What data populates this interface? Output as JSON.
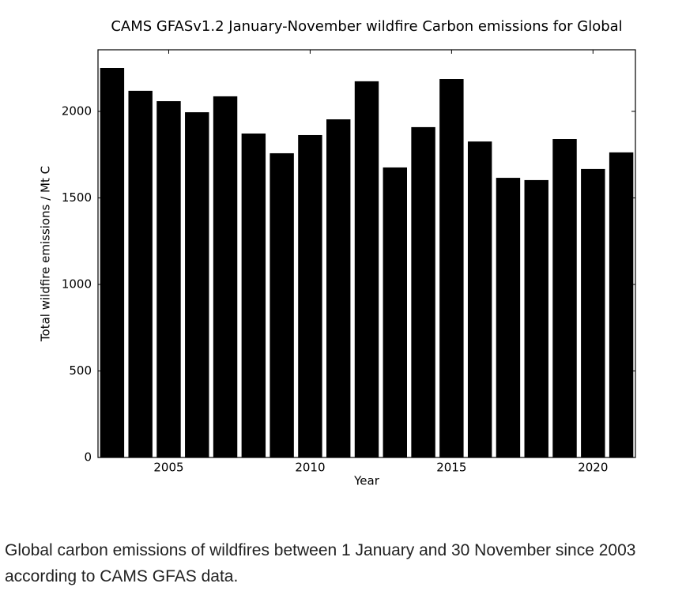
{
  "chart_data": {
    "type": "bar",
    "title": "CAMS GFASv1.2 January-November wildfire Carbon emissions for Global",
    "x_label": "Year",
    "y_label": "Total wildfire emissions / Mt C",
    "x": [
      2003,
      2004,
      2005,
      2006,
      2007,
      2008,
      2009,
      2010,
      2011,
      2012,
      2013,
      2014,
      2015,
      2016,
      2017,
      2018,
      2019,
      2020,
      2021
    ],
    "values": [
      2251,
      2119,
      2059,
      1995,
      2087,
      1872,
      1758,
      1863,
      1954,
      2174,
      1676,
      1909,
      2187,
      1826,
      1616,
      1603,
      1840,
      1667,
      1763
    ],
    "color": "#000000",
    "xlim": [
      2002.5,
      2021.5
    ],
    "xticks": [
      2005,
      2010,
      2015,
      2020
    ],
    "ylim": [
      0,
      2356
    ],
    "yticks": [
      0,
      500,
      1000,
      1500,
      2000
    ],
    "grid": false
  },
  "caption": "Global carbon emissions of wildfires between 1 January and 30 November since 2003 according to CAMS GFAS data."
}
